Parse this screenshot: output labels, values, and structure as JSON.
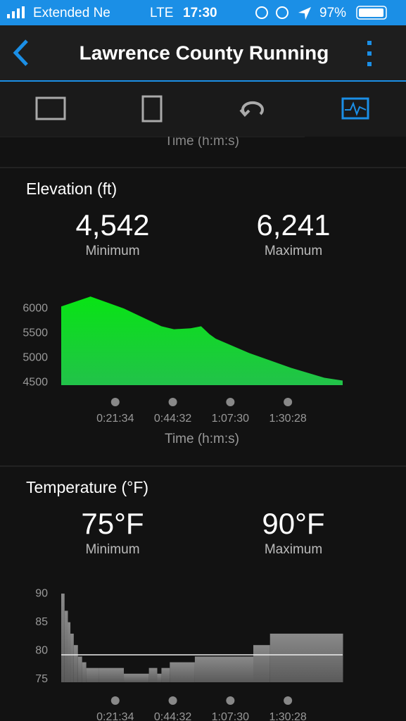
{
  "status_bar": {
    "carrier": "Extended Ne",
    "network": "LTE",
    "time": "17:30",
    "battery": "97%"
  },
  "header": {
    "title": "Lawrence County Running"
  },
  "partial_axis_label": "Time (h:m:s)",
  "sections": [
    {
      "title": "Elevation (ft)",
      "stats": [
        {
          "value": "4,542",
          "label": "Minimum"
        },
        {
          "value": "6,241",
          "label": "Maximum"
        }
      ],
      "chart": {
        "type": "area",
        "color": "#10dc20",
        "x": [
          0,
          700,
          1500,
          2400,
          2700,
          3100,
          3350,
          3550,
          3700,
          4500,
          5500,
          6300,
          6740
        ],
        "values": [
          6040,
          6241,
          6000,
          5640,
          5580,
          5600,
          5640,
          5480,
          5390,
          5100,
          4800,
          4600,
          4542
        ],
        "xlim": [
          0,
          6740
        ],
        "ylim": [
          4450,
          6300
        ],
        "yticks": [
          4500,
          5000,
          5500,
          6000
        ],
        "xticks": [
          {
            "value": 1294,
            "label": "0:21:34"
          },
          {
            "value": 2672,
            "label": "0:44:32"
          },
          {
            "value": 4050,
            "label": "1:07:30"
          },
          {
            "value": 5428,
            "label": "1:30:28"
          }
        ],
        "xlabel": "Time (h:m:s)"
      }
    },
    {
      "title": "Temperature (°F)",
      "stats": [
        {
          "value": "75°F",
          "label": "Minimum"
        },
        {
          "value": "90°F",
          "label": "Maximum"
        }
      ],
      "chart": {
        "type": "step",
        "color": "#9a9a9a",
        "x": [
          0,
          80,
          160,
          220,
          300,
          400,
          500,
          600,
          900,
          1500,
          2100,
          2300,
          2400,
          2600,
          3200,
          4600,
          5000,
          6740
        ],
        "values": [
          90,
          87,
          85,
          83,
          81,
          79,
          78,
          77,
          77,
          76,
          77,
          76,
          77,
          78,
          79,
          81,
          83,
          83
        ],
        "line_value": 79.3,
        "xlim": [
          0,
          6740
        ],
        "ylim": [
          74.5,
          90.5
        ],
        "yticks": [
          75,
          80,
          85,
          90
        ],
        "xticks": [
          {
            "value": 1294,
            "label": "0:21:34"
          },
          {
            "value": 2672,
            "label": "0:44:32"
          },
          {
            "value": 4050,
            "label": "1:07:30"
          },
          {
            "value": 5428,
            "label": "1:30:28"
          }
        ]
      }
    }
  ]
}
